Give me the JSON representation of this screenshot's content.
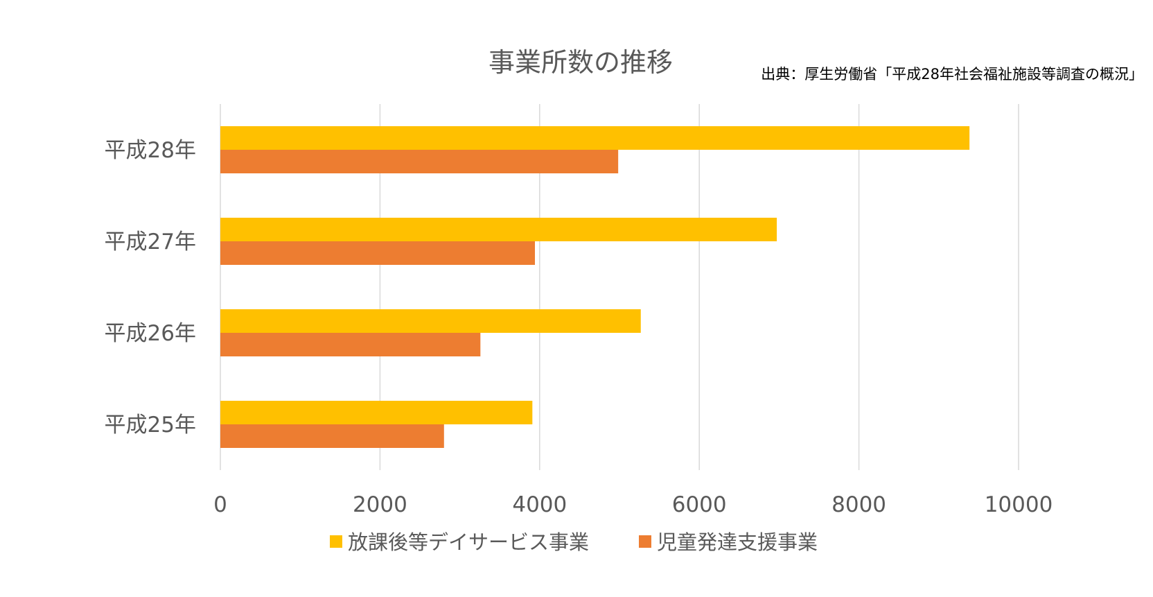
{
  "chart_data": {
    "type": "bar",
    "orientation": "horizontal",
    "title": "事業所数の推移",
    "annotation": "出典：厚生労働省「平成28年社会福祉施設等調査の概況」",
    "categories": [
      "平成28年",
      "平成27年",
      "平成26年",
      "平成25年"
    ],
    "series": [
      {
        "name": "放課後等デイサービス事業",
        "color": "#FFC000",
        "values": [
          9385,
          6971,
          5267,
          3909
        ]
      },
      {
        "name": "児童発達支援事業",
        "color": "#ED7D31",
        "values": [
          4984,
          3941,
          3258,
          2802
        ]
      }
    ],
    "xlim": [
      0,
      10000
    ],
    "ticks": [
      "0",
      "2000",
      "4000",
      "6000",
      "8000",
      "10000"
    ],
    "grid": true,
    "legend_position": "bottom"
  }
}
